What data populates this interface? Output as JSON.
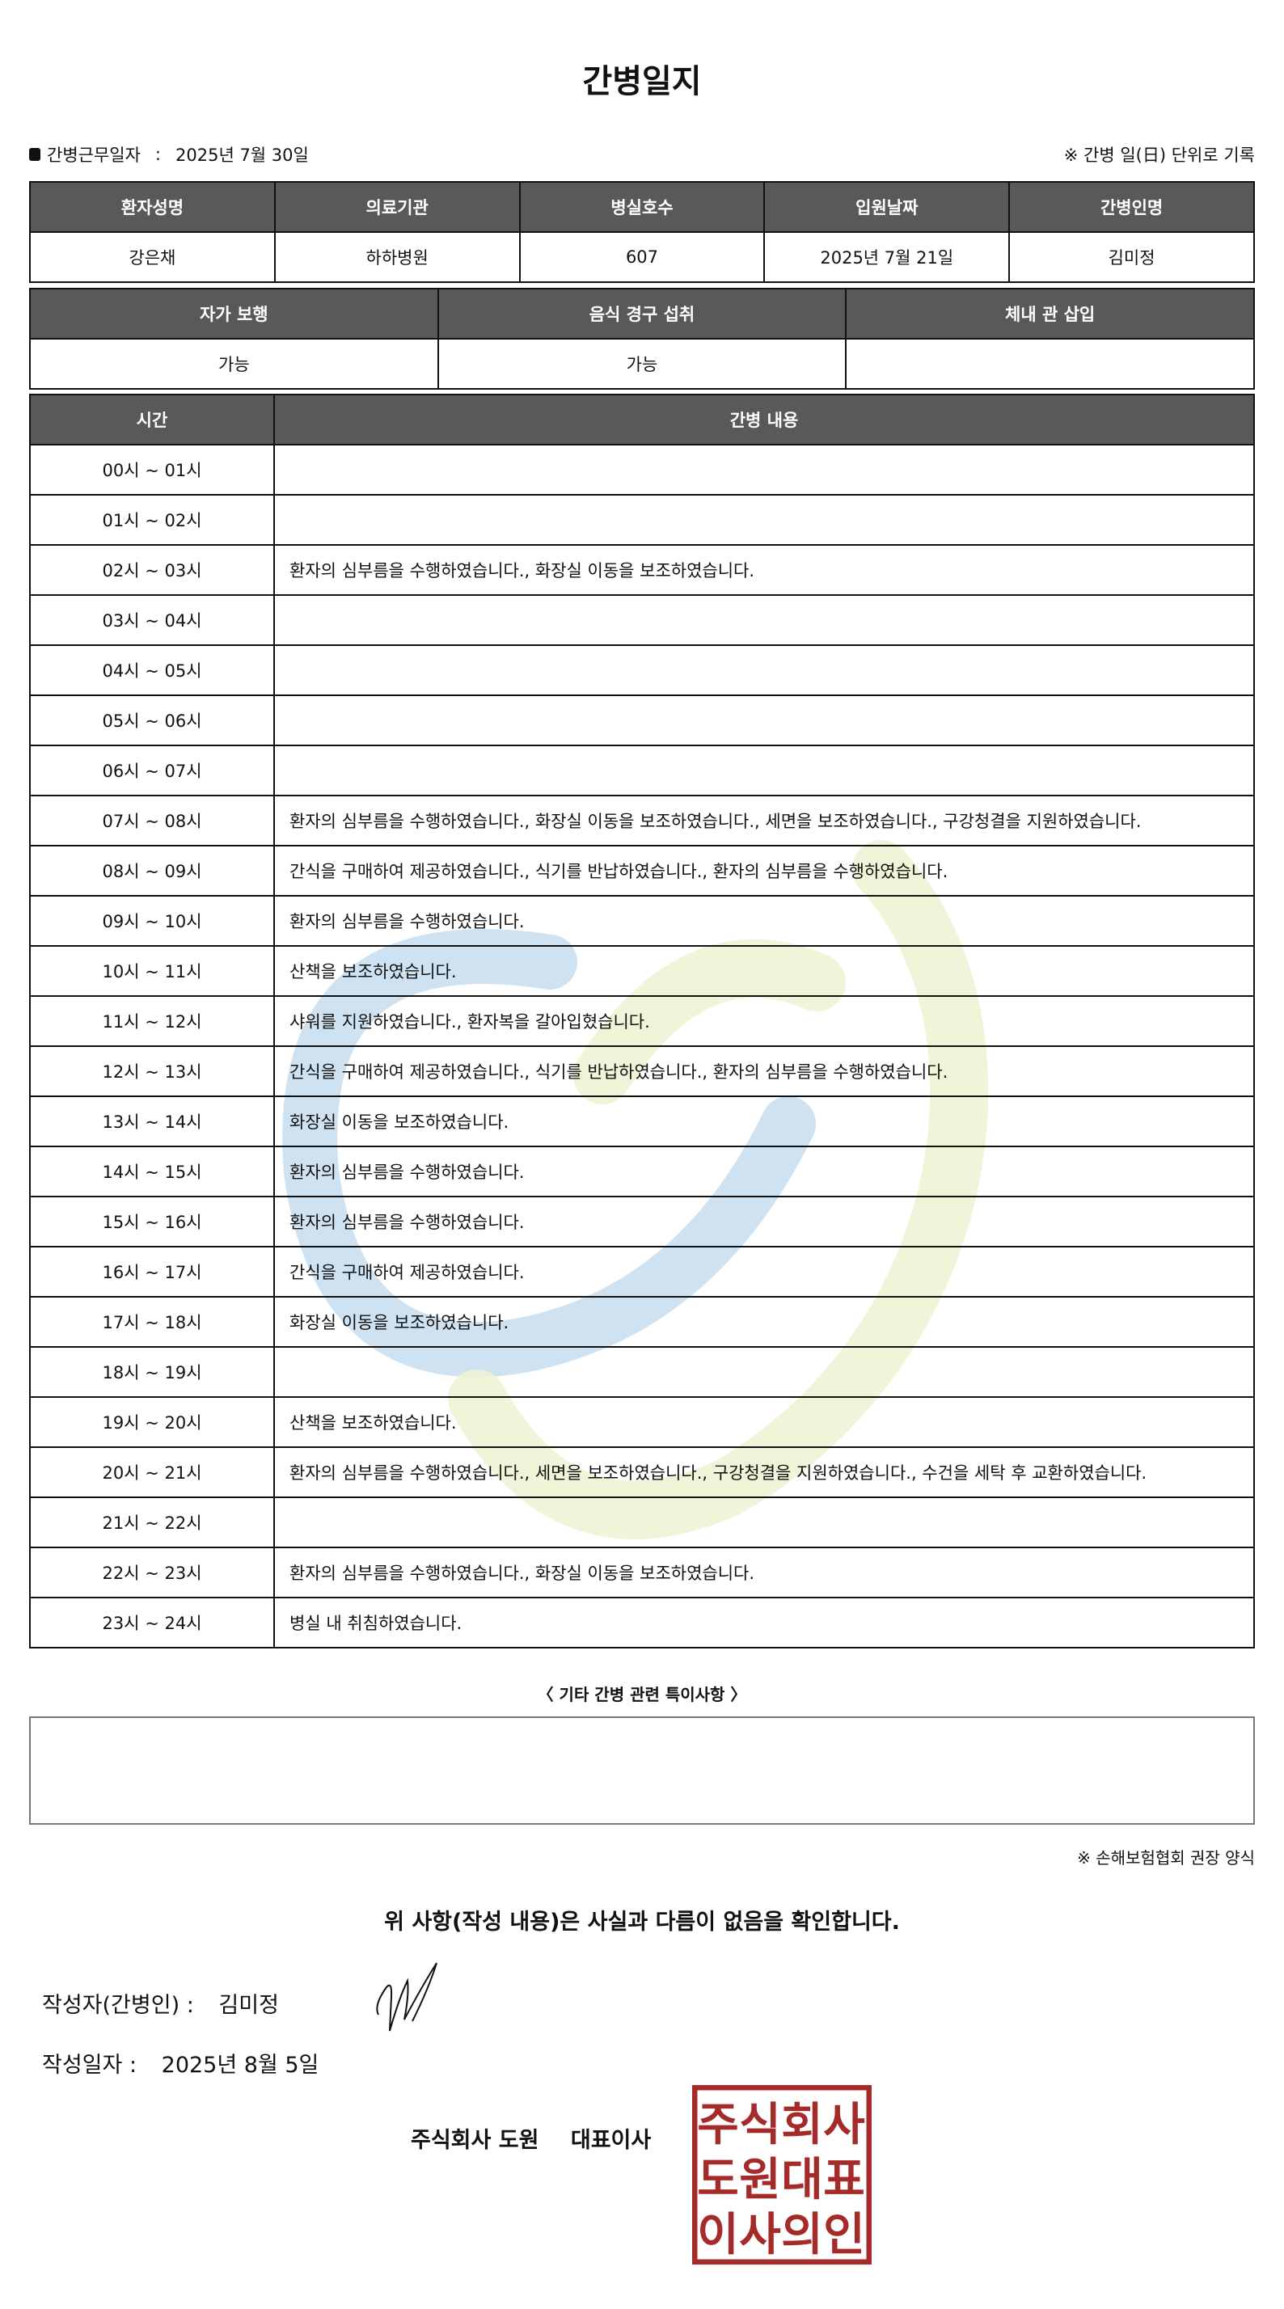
{
  "title": "간병일지",
  "work_date_label": "간병근무일자",
  "work_date_sep": ":",
  "work_date": "2025년 7월 30일",
  "record_note": "※ 간병 일(日) 단위로 기록",
  "patient_table": {
    "headers": [
      "환자성명",
      "의료기관",
      "병실호수",
      "입원날짜",
      "간병인명"
    ],
    "values": [
      "강은채",
      "하하병원",
      "607",
      "2025년 7월 21일",
      "김미정"
    ]
  },
  "status_table": {
    "headers": [
      "자가 보행",
      "음식 경구 섭취",
      "체내 관 삽입"
    ],
    "values": [
      "가능",
      "가능",
      ""
    ]
  },
  "care_log": {
    "headers": [
      "시간",
      "간병 내용"
    ],
    "rows": [
      {
        "time": "00시 ~ 01시",
        "content": ""
      },
      {
        "time": "01시 ~ 02시",
        "content": ""
      },
      {
        "time": "02시 ~ 03시",
        "content": "환자의 심부름을 수행하였습니다., 화장실 이동을 보조하였습니다."
      },
      {
        "time": "03시 ~ 04시",
        "content": ""
      },
      {
        "time": "04시 ~ 05시",
        "content": ""
      },
      {
        "time": "05시 ~ 06시",
        "content": ""
      },
      {
        "time": "06시 ~ 07시",
        "content": ""
      },
      {
        "time": "07시 ~ 08시",
        "content": "환자의 심부름을 수행하였습니다., 화장실 이동을 보조하였습니다., 세면을 보조하였습니다., 구강청결을 지원하였습니다."
      },
      {
        "time": "08시 ~ 09시",
        "content": "간식을 구매하여 제공하였습니다., 식기를 반납하였습니다., 환자의 심부름을 수행하였습니다."
      },
      {
        "time": "09시 ~ 10시",
        "content": "환자의 심부름을 수행하였습니다."
      },
      {
        "time": "10시 ~ 11시",
        "content": "산책을 보조하였습니다."
      },
      {
        "time": "11시 ~ 12시",
        "content": "샤워를 지원하였습니다., 환자복을 갈아입혔습니다."
      },
      {
        "time": "12시 ~ 13시",
        "content": "간식을 구매하여 제공하였습니다., 식기를 반납하였습니다., 환자의 심부름을 수행하였습니다."
      },
      {
        "time": "13시 ~ 14시",
        "content": "화장실 이동을 보조하였습니다."
      },
      {
        "time": "14시 ~ 15시",
        "content": "환자의 심부름을 수행하였습니다."
      },
      {
        "time": "15시 ~ 16시",
        "content": "환자의 심부름을 수행하였습니다."
      },
      {
        "time": "16시 ~ 17시",
        "content": "간식을 구매하여 제공하였습니다."
      },
      {
        "time": "17시 ~ 18시",
        "content": "화장실 이동을 보조하였습니다."
      },
      {
        "time": "18시 ~ 19시",
        "content": ""
      },
      {
        "time": "19시 ~ 20시",
        "content": "산책을 보조하였습니다."
      },
      {
        "time": "20시 ~ 21시",
        "content": "환자의 심부름을 수행하였습니다., 세면을 보조하였습니다., 구강청결을 지원하였습니다., 수건을 세탁 후 교환하였습니다."
      },
      {
        "time": "21시 ~ 22시",
        "content": ""
      },
      {
        "time": "22시 ~ 23시",
        "content": "환자의 심부름을 수행하였습니다., 화장실 이동을 보조하였습니다."
      },
      {
        "time": "23시 ~ 24시",
        "content": "병실 내 취침하였습니다."
      }
    ]
  },
  "etc_label": "〈 기타 간병 관련 특이사항 〉",
  "etc_content": "",
  "form_note": "※ 손해보험협회 권장 양식",
  "confirm_text": "위 사항(작성 내용)은 사실과 다름이 없음을 확인합니다.",
  "writer_label": "작성자(간병인) :",
  "writer_name": "김미정",
  "write_date_label": "작성일자 :",
  "write_date": "2025년 8월 5일",
  "company": "주식회사 도원",
  "ceo_title": "대표이사",
  "stamp_text": [
    "주식회사",
    "도원대표",
    "이사의인"
  ],
  "colors": {
    "header_bg": "#595959",
    "stamp": "#a52a2a",
    "watermark_blue": "#c9dff0",
    "watermark_green": "#eef3d4"
  }
}
